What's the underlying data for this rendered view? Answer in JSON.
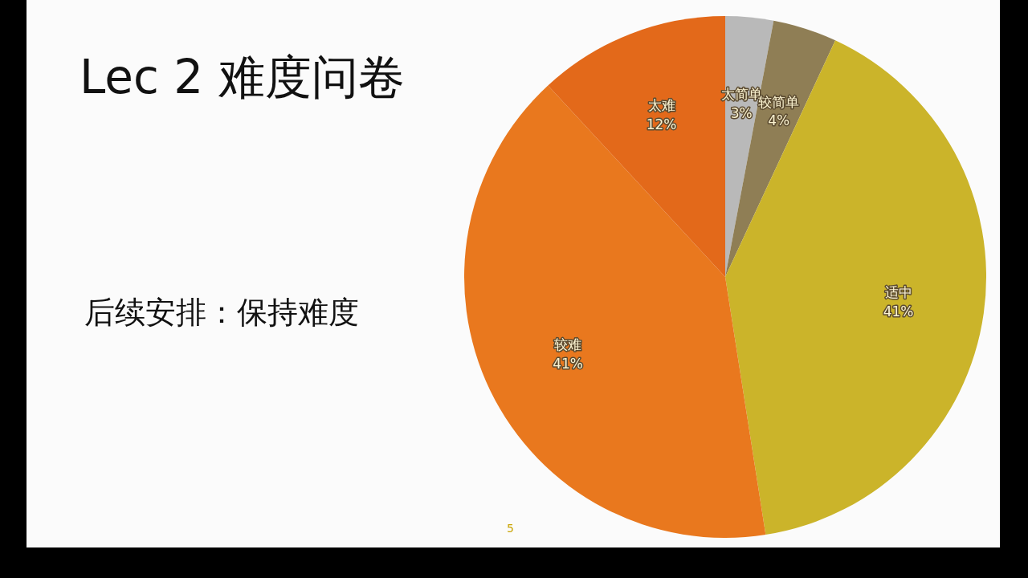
{
  "chart_data": {
    "type": "pie",
    "title": "Lec 2 难度问卷",
    "subtitle": "后续安排：保持难度",
    "categories": [
      "太简单",
      "较简单",
      "适中",
      "较难",
      "太难"
    ],
    "values": [
      3,
      4,
      41,
      41,
      12
    ],
    "colors": [
      "#b9b9b9",
      "#8f7e55",
      "#cbb42a",
      "#e9781e",
      "#e3691a"
    ],
    "value_labels": [
      "3%",
      "4%",
      "41%",
      "41%",
      "12%"
    ],
    "annotations": [
      "5"
    ],
    "legend": false
  }
}
